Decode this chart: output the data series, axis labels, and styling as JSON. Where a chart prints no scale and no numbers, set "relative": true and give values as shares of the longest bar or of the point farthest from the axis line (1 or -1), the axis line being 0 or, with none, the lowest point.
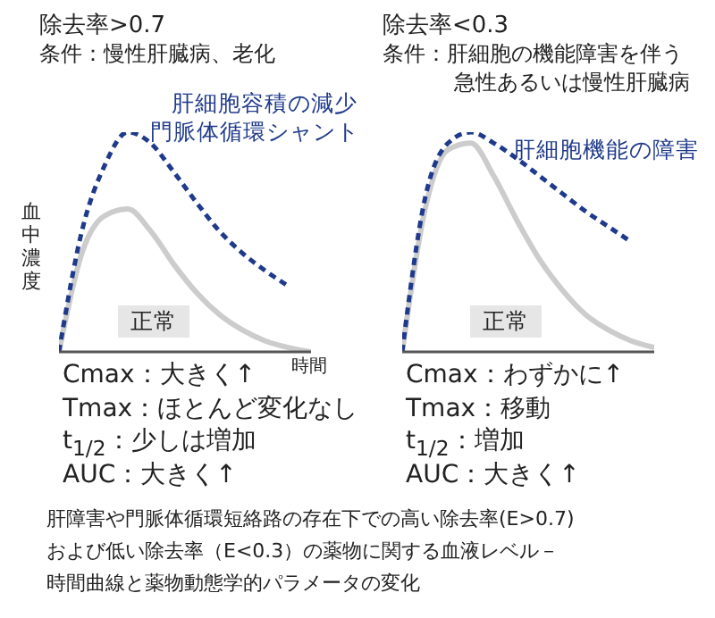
{
  "chart_data": [
    {
      "type": "line",
      "relative": true,
      "title": "除去率>0.7",
      "subtitle": "条件：慢性肝臓病、老化",
      "ylabel": "血中濃度",
      "xlabel": "時間",
      "categories": [
        null,
        null,
        null,
        null,
        null,
        null,
        null,
        null,
        null,
        null,
        null,
        null
      ],
      "series": [
        {
          "name": "肝細胞容積の減少門脈体循環シャント",
          "color": "#1f3a8a",
          "line_style": "dashed",
          "values": [
            0,
            0.55,
            0.85,
            1.0,
            0.95,
            0.82,
            0.68,
            0.55,
            0.45,
            0.37,
            0.3,
            null
          ]
        },
        {
          "name": "正常",
          "color": "#cccccc",
          "line_style": "solid",
          "values": [
            0,
            0.45,
            0.62,
            0.65,
            0.55,
            0.4,
            0.27,
            0.17,
            0.1,
            0.05,
            0.02,
            0
          ]
        }
      ],
      "annotations": [
        "Cmax：大きく↑",
        "Tmax：ほとんど変化なし",
        "t$_{1/2}$：少しは増加",
        "AUC：大きく↑"
      ]
    },
    {
      "type": "line",
      "relative": true,
      "title": "除去率<0.3",
      "subtitle": "条件：肝細胞の機能障害を伴う急性あるいは慢性肝臓病",
      "categories": [
        null,
        null,
        null,
        null,
        null,
        null,
        null,
        null,
        null,
        null,
        null,
        null
      ],
      "series": [
        {
          "name": "肝細胞機能の障害",
          "color": "#1f3a8a",
          "line_style": "dashed",
          "values": [
            0,
            0.7,
            0.95,
            1.0,
            0.95,
            0.88,
            0.8,
            0.72,
            0.64,
            0.57,
            0.5,
            null
          ]
        },
        {
          "name": "正常",
          "color": "#cccccc",
          "line_style": "solid",
          "values": [
            0,
            0.65,
            0.92,
            0.95,
            0.8,
            0.6,
            0.42,
            0.28,
            0.17,
            0.1,
            0.05,
            0.02
          ]
        }
      ],
      "annotations": [
        "Cmax：わずかに↑",
        "Tmax：移動",
        "t$_{1/2}$：増加",
        "AUC：大きく↑",
        "肝障害や門脈体循環短絡路の存在下での高い除去率(E>0.7)および低い除去率（E<0.3）の薬物に関する血液レベル－時間曲線と薬物動態学的パラメータの変化"
      ]
    }
  ]
}
